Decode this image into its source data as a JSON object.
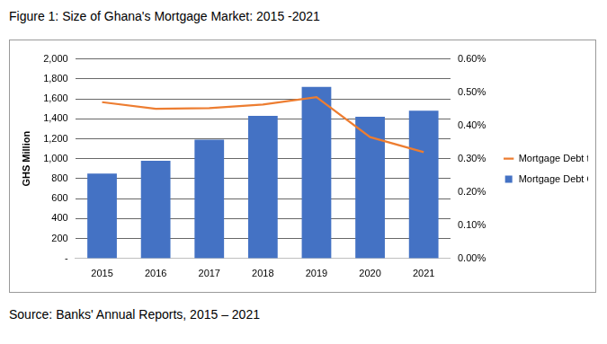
{
  "chart_data": {
    "type": "bar",
    "title": "Figure 1: Size of Ghana's Mortgage Market: 2015 -2021",
    "source": "Source: Banks' Annual Reports, 2015 – 2021",
    "ylabel": "GHS Million",
    "categories": [
      "2015",
      "2016",
      "2017",
      "2018",
      "2019",
      "2020",
      "2021"
    ],
    "series": [
      {
        "name": "Mortgage Debt Outstanding",
        "type": "bar",
        "color": "#4472c4",
        "values": [
          850,
          980,
          1190,
          1430,
          1720,
          1420,
          1480
        ]
      },
      {
        "name": "Mortgage Debt to GDP Ratio",
        "type": "line",
        "color": "#ed7d31",
        "axis": "y2",
        "marker": "none",
        "values": [
          0.47,
          0.45,
          0.452,
          0.463,
          0.485,
          0.365,
          0.32
        ]
      }
    ],
    "ylim": [
      0,
      2000
    ],
    "yticks": [
      {
        "value": 0,
        "label": "-"
      },
      {
        "value": 200,
        "label": "200"
      },
      {
        "value": 400,
        "label": "400"
      },
      {
        "value": 600,
        "label": "600"
      },
      {
        "value": 800,
        "label": "800"
      },
      {
        "value": 1000,
        "label": "1,000"
      },
      {
        "value": 1200,
        "label": "1,200"
      },
      {
        "value": 1400,
        "label": "1,400"
      },
      {
        "value": 1600,
        "label": "1,600"
      },
      {
        "value": 1800,
        "label": "1,800"
      },
      {
        "value": 2000,
        "label": "2,000"
      }
    ],
    "y2lim": [
      0,
      0.6
    ],
    "y2ticks": [
      {
        "value": 0,
        "label": "0.00%"
      },
      {
        "value": 0.1,
        "label": "0.10%"
      },
      {
        "value": 0.2,
        "label": "0.20%"
      },
      {
        "value": 0.3,
        "label": "0.30%"
      },
      {
        "value": 0.4,
        "label": "0.40%"
      },
      {
        "value": 0.5,
        "label": "0.50%"
      },
      {
        "value": 0.6,
        "label": "0.60%"
      }
    ],
    "grid": true,
    "legend": "right"
  }
}
